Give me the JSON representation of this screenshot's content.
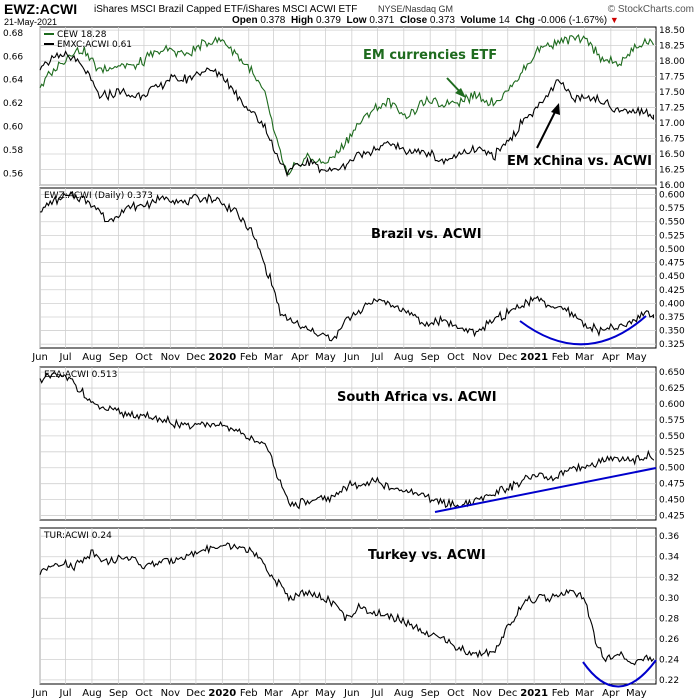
{
  "header": {
    "symbol": "EWZ:ACWI",
    "name": "iShares MSCI Brazil Capped ETF/iShares MSCI ACWI ETF",
    "exchange": "NYSE/Nasdaq GM",
    "date": "21-May-2021",
    "open_label": "Open",
    "open": "0.378",
    "high_label": "High",
    "high": "0.379",
    "low_label": "Low",
    "low": "0.371",
    "close_label": "Close",
    "close": "0.373",
    "volume_label": "Volume",
    "volume": "14",
    "chg_label": "Chg",
    "chg": "-0.006 (-1.67%)",
    "brand": "© StockCharts.com"
  },
  "colors": {
    "black_series": "#000000",
    "green_series": "#1e6b1e",
    "trend_line": "#0000cc",
    "annotation_green": "#1e6b1e",
    "grid": "#d0d0d0"
  },
  "chart_data": [
    {
      "type": "line",
      "panel": "top",
      "legend_position": "top-left",
      "series": [
        {
          "name": "CEW 18.28",
          "axis": "right",
          "color": "#1e6b1e",
          "x": [
            "2019-06-01",
            "2019-07-01",
            "2019-07-20",
            "2019-08-10",
            "2019-09-01",
            "2019-09-20",
            "2019-10-10",
            "2019-11-01",
            "2019-11-20",
            "2019-12-10",
            "2020-01-01",
            "2020-01-15",
            "2020-02-01",
            "2020-02-20",
            "2020-03-05",
            "2020-03-18",
            "2020-03-25",
            "2020-04-10",
            "2020-05-01",
            "2020-05-20",
            "2020-06-08",
            "2020-06-25",
            "2020-07-15",
            "2020-08-05",
            "2020-08-25",
            "2020-09-15",
            "2020-10-05",
            "2020-10-25",
            "2020-11-15",
            "2020-12-05",
            "2020-12-25",
            "2021-01-10",
            "2021-01-30",
            "2021-02-15",
            "2021-03-05",
            "2021-03-25",
            "2021-04-10",
            "2021-04-25",
            "2021-05-10",
            "2021-05-21"
          ],
          "y": [
            17.6,
            18.05,
            18.2,
            17.85,
            17.95,
            17.9,
            18.1,
            18.2,
            18.1,
            18.3,
            18.35,
            18.15,
            17.9,
            17.45,
            16.7,
            16.1,
            16.3,
            16.45,
            16.35,
            16.6,
            16.95,
            17.2,
            17.35,
            17.1,
            17.35,
            17.3,
            17.35,
            17.45,
            17.3,
            17.6,
            17.95,
            18.25,
            18.3,
            18.35,
            18.3,
            18.0,
            17.95,
            18.15,
            18.3,
            18.28
          ]
        },
        {
          "name": "EMXC:ACWI 0.61",
          "axis": "left",
          "color": "#000000",
          "x": [
            "2019-06-01",
            "2019-07-01",
            "2019-07-20",
            "2019-08-10",
            "2019-09-01",
            "2019-09-20",
            "2019-10-10",
            "2019-11-01",
            "2019-11-20",
            "2019-12-10",
            "2020-01-01",
            "2020-01-15",
            "2020-02-01",
            "2020-02-20",
            "2020-03-05",
            "2020-03-18",
            "2020-03-25",
            "2020-04-10",
            "2020-05-01",
            "2020-05-20",
            "2020-06-08",
            "2020-06-25",
            "2020-07-15",
            "2020-08-05",
            "2020-08-25",
            "2020-09-15",
            "2020-10-05",
            "2020-10-25",
            "2020-11-15",
            "2020-12-05",
            "2020-12-25",
            "2021-01-10",
            "2021-01-30",
            "2021-02-15",
            "2021-03-05",
            "2021-03-25",
            "2021-04-10",
            "2021-04-25",
            "2021-05-10",
            "2021-05-21"
          ],
          "y": [
            0.652,
            0.662,
            0.652,
            0.625,
            0.63,
            0.625,
            0.632,
            0.64,
            0.64,
            0.648,
            0.645,
            0.63,
            0.615,
            0.6,
            0.575,
            0.56,
            0.565,
            0.57,
            0.562,
            0.565,
            0.575,
            0.58,
            0.585,
            0.578,
            0.58,
            0.57,
            0.575,
            0.58,
            0.575,
            0.59,
            0.61,
            0.62,
            0.638,
            0.625,
            0.626,
            0.62,
            0.615,
            0.612,
            0.613,
            0.61
          ]
        }
      ],
      "ylim_left": [
        0.55,
        0.685
      ],
      "ylim_right": [
        16.0,
        18.55
      ],
      "yticks_left": [
        "0.56",
        "0.58",
        "0.60",
        "0.62",
        "0.64",
        "0.66",
        "0.68"
      ],
      "yticks_right": [
        "16.00",
        "16.25",
        "16.50",
        "16.75",
        "17.00",
        "17.25",
        "17.50",
        "17.75",
        "18.00",
        "18.25",
        "18.50"
      ],
      "annotations": [
        "EM currencies ETF",
        "EM xChina vs. ACWI"
      ],
      "grid": true
    },
    {
      "type": "line",
      "panel": "brazil",
      "legend_position": "top-left",
      "series": [
        {
          "name": "EWZ:ACWI (Daily) 0.373",
          "x": [
            "2019-06-01",
            "2019-06-20",
            "2019-07-10",
            "2019-08-01",
            "2019-08-20",
            "2019-09-10",
            "2019-10-01",
            "2019-10-25",
            "2019-11-15",
            "2019-12-05",
            "2019-12-25",
            "2020-01-15",
            "2020-02-05",
            "2020-02-25",
            "2020-03-10",
            "2020-03-20",
            "2020-04-05",
            "2020-04-25",
            "2020-05-10",
            "2020-05-25",
            "2020-06-10",
            "2020-06-30",
            "2020-07-20",
            "2020-08-10",
            "2020-08-25",
            "2020-09-15",
            "2020-10-05",
            "2020-10-25",
            "2020-11-15",
            "2020-12-05",
            "2020-12-20",
            "2021-01-05",
            "2021-01-20",
            "2021-02-10",
            "2021-03-01",
            "2021-03-20",
            "2021-04-05",
            "2021-04-20",
            "2021-05-05",
            "2021-05-14",
            "2021-05-21"
          ],
          "y": [
            0.57,
            0.59,
            0.6,
            0.585,
            0.55,
            0.575,
            0.58,
            0.595,
            0.585,
            0.595,
            0.59,
            0.57,
            0.53,
            0.45,
            0.38,
            0.37,
            0.355,
            0.345,
            0.33,
            0.37,
            0.385,
            0.41,
            0.395,
            0.38,
            0.36,
            0.37,
            0.355,
            0.345,
            0.37,
            0.385,
            0.4,
            0.41,
            0.395,
            0.385,
            0.36,
            0.35,
            0.355,
            0.36,
            0.375,
            0.385,
            0.373
          ]
        }
      ],
      "ylim": [
        0.318,
        0.612
      ],
      "yticks": [
        "0.325",
        "0.350",
        "0.375",
        "0.400",
        "0.425",
        "0.450",
        "0.475",
        "0.500",
        "0.525",
        "0.550",
        "0.575",
        "0.600"
      ],
      "annotations": [
        "Brazil vs. ACWI"
      ],
      "grid": true
    },
    {
      "type": "line",
      "panel": "south-africa",
      "legend_position": "top-left",
      "series": [
        {
          "name": "EZA:ACWI 0.513",
          "x": [
            "2019-06-01",
            "2019-06-20",
            "2019-07-10",
            "2019-08-01",
            "2019-08-20",
            "2019-09-10",
            "2019-10-01",
            "2019-10-25",
            "2019-11-15",
            "2019-12-05",
            "2019-12-25",
            "2020-01-15",
            "2020-02-05",
            "2020-02-25",
            "2020-03-10",
            "2020-03-20",
            "2020-04-05",
            "2020-04-25",
            "2020-05-10",
            "2020-05-25",
            "2020-06-10",
            "2020-06-30",
            "2020-07-20",
            "2020-08-10",
            "2020-08-25",
            "2020-09-15",
            "2020-10-05",
            "2020-10-25",
            "2020-11-15",
            "2020-12-05",
            "2020-12-20",
            "2021-01-05",
            "2021-01-20",
            "2021-02-10",
            "2021-03-01",
            "2021-03-20",
            "2021-04-05",
            "2021-04-20",
            "2021-05-05",
            "2021-05-14",
            "2021-05-21"
          ],
          "y": [
            0.64,
            0.645,
            0.635,
            0.6,
            0.59,
            0.585,
            0.58,
            0.575,
            0.565,
            0.57,
            0.565,
            0.56,
            0.545,
            0.53,
            0.47,
            0.44,
            0.445,
            0.45,
            0.455,
            0.47,
            0.475,
            0.48,
            0.465,
            0.46,
            0.455,
            0.445,
            0.44,
            0.45,
            0.46,
            0.47,
            0.48,
            0.49,
            0.48,
            0.495,
            0.5,
            0.51,
            0.515,
            0.51,
            0.515,
            0.52,
            0.513
          ]
        }
      ],
      "ylim": [
        0.418,
        0.658
      ],
      "yticks": [
        "0.425",
        "0.450",
        "0.475",
        "0.500",
        "0.525",
        "0.550",
        "0.575",
        "0.600",
        "0.625",
        "0.650"
      ],
      "annotations": [
        "South Africa vs. ACWI"
      ],
      "grid": true
    },
    {
      "type": "line",
      "panel": "turkey",
      "legend_position": "top-left",
      "series": [
        {
          "name": "TUR:ACWI 0.24",
          "x": [
            "2019-06-01",
            "2019-06-20",
            "2019-07-10",
            "2019-08-01",
            "2019-08-20",
            "2019-09-10",
            "2019-10-01",
            "2019-10-25",
            "2019-11-15",
            "2019-12-05",
            "2019-12-25",
            "2020-01-15",
            "2020-02-05",
            "2020-02-25",
            "2020-03-10",
            "2020-03-20",
            "2020-04-05",
            "2020-04-25",
            "2020-05-10",
            "2020-05-25",
            "2020-06-10",
            "2020-06-30",
            "2020-07-20",
            "2020-08-10",
            "2020-08-25",
            "2020-09-15",
            "2020-10-05",
            "2020-10-25",
            "2020-11-15",
            "2020-12-05",
            "2020-12-20",
            "2021-01-05",
            "2021-01-20",
            "2021-02-10",
            "2021-03-01",
            "2021-03-15",
            "2021-03-25",
            "2021-04-10",
            "2021-04-25",
            "2021-05-10",
            "2021-05-21"
          ],
          "y": [
            0.325,
            0.335,
            0.33,
            0.345,
            0.335,
            0.34,
            0.33,
            0.335,
            0.34,
            0.345,
            0.35,
            0.35,
            0.345,
            0.325,
            0.31,
            0.3,
            0.305,
            0.3,
            0.295,
            0.28,
            0.29,
            0.285,
            0.28,
            0.275,
            0.265,
            0.26,
            0.25,
            0.245,
            0.25,
            0.275,
            0.295,
            0.3,
            0.3,
            0.305,
            0.3,
            0.255,
            0.24,
            0.245,
            0.235,
            0.24,
            0.24
          ]
        }
      ],
      "ylim": [
        0.216,
        0.368
      ],
      "yticks": [
        "0.22",
        "0.24",
        "0.26",
        "0.28",
        "0.30",
        "0.32",
        "0.34",
        "0.36"
      ],
      "annotations": [
        "Turkey vs. ACWI"
      ],
      "grid": true
    }
  ],
  "x_axis": {
    "labels": [
      "Jun",
      "Jul",
      "Aug",
      "Sep",
      "Oct",
      "Nov",
      "Dec",
      "2020",
      "Feb",
      "Mar",
      "Apr",
      "May",
      "Jun",
      "Jul",
      "Aug",
      "Sep",
      "Oct",
      "Nov",
      "Dec",
      "2021",
      "Feb",
      "Mar",
      "Apr",
      "May"
    ],
    "dates": [
      "2019-06-01",
      "2019-07-01",
      "2019-08-01",
      "2019-09-01",
      "2019-10-01",
      "2019-11-01",
      "2019-12-01",
      "2020-01-01",
      "2020-02-01",
      "2020-03-01",
      "2020-04-01",
      "2020-05-01",
      "2020-06-01",
      "2020-07-01",
      "2020-08-01",
      "2020-09-01",
      "2020-10-01",
      "2020-11-01",
      "2020-12-01",
      "2021-01-01",
      "2021-02-01",
      "2021-03-01",
      "2021-04-01",
      "2021-05-01"
    ],
    "range": [
      "2019-06-01",
      "2021-05-24"
    ]
  }
}
